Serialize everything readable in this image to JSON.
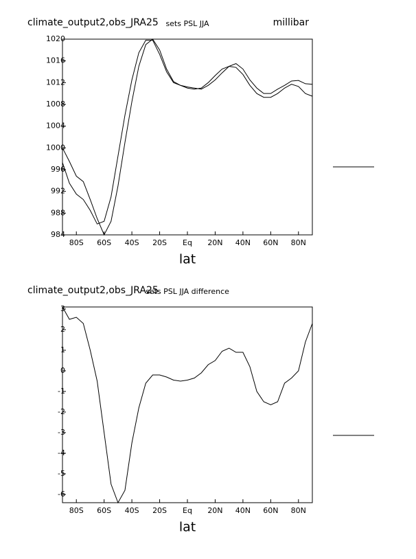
{
  "chart_data": [
    {
      "type": "line",
      "title": "climate_output2,obs_JRA25",
      "subtitle": "sets PSL JJA",
      "units": "millibar",
      "x_label": "lat",
      "x": [
        -90,
        -85,
        -80,
        -75,
        -70,
        -65,
        -60,
        -55,
        -50,
        -45,
        -40,
        -35,
        -30,
        -25,
        -20,
        -15,
        -10,
        -5,
        0,
        5,
        10,
        15,
        20,
        25,
        30,
        35,
        40,
        45,
        50,
        55,
        60,
        65,
        70,
        75,
        80,
        85,
        90
      ],
      "series": [
        {
          "color": "#000000",
          "values": [
            1000,
            997.5,
            994.8,
            993.8,
            990.5,
            987,
            984,
            986.5,
            993,
            1001,
            1008.5,
            1015,
            1019,
            1020,
            1018,
            1014.5,
            1012.2,
            1011.5,
            1011.2,
            1011,
            1010.8,
            1011.5,
            1012.5,
            1013.8,
            1015,
            1015.5,
            1014.5,
            1012.5,
            1011,
            1010,
            1010,
            1010.8,
            1011.5,
            1012.3,
            1012.4,
            1011.8,
            1011.7
          ]
        },
        {
          "color": "#000000",
          "values": [
            997.3,
            993.5,
            991.5,
            990.5,
            988.5,
            986,
            986.5,
            991,
            998.5,
            1006,
            1012.5,
            1017.5,
            1019.8,
            1019.8,
            1017.2,
            1014,
            1012,
            1011.5,
            1011,
            1010.8,
            1011,
            1012,
            1013.3,
            1014.5,
            1015,
            1014.8,
            1013.5,
            1011.5,
            1010,
            1009.3,
            1009.3,
            1010,
            1011,
            1011.7,
            1011.3,
            1010,
            1009.5
          ]
        }
      ],
      "xlim": [
        -90,
        90
      ],
      "ylim": [
        984,
        1020
      ],
      "xticks": [
        {
          "value": -80,
          "label": "80S"
        },
        {
          "value": -60,
          "label": "60S"
        },
        {
          "value": -40,
          "label": "40S"
        },
        {
          "value": -20,
          "label": "20S"
        },
        {
          "value": 0,
          "label": "Eq"
        },
        {
          "value": 20,
          "label": "20N"
        },
        {
          "value": 40,
          "label": "40N"
        },
        {
          "value": 60,
          "label": "60N"
        },
        {
          "value": 80,
          "label": "80N"
        }
      ],
      "yticks": [
        984,
        988,
        992,
        996,
        1000,
        1004,
        1008,
        1012,
        1016,
        1020
      ]
    },
    {
      "type": "line",
      "title": "climate_output2,obs_JRA25",
      "subtitle": "sets PSL JJA difference",
      "x_label": "lat",
      "x": [
        -90,
        -85,
        -80,
        -75,
        -70,
        -65,
        -60,
        -55,
        -50,
        -45,
        -40,
        -35,
        -30,
        -25,
        -20,
        -15,
        -10,
        -5,
        0,
        5,
        10,
        15,
        20,
        25,
        30,
        35,
        40,
        45,
        50,
        55,
        60,
        65,
        70,
        75,
        80,
        85,
        90
      ],
      "series": [
        {
          "color": "#000000",
          "values": [
            3.1,
            2.5,
            2.6,
            2.3,
            1.0,
            -0.5,
            -3.0,
            -5.5,
            -6.4,
            -5.8,
            -3.5,
            -1.8,
            -0.6,
            -0.2,
            -0.2,
            -0.3,
            -0.45,
            -0.5,
            -0.45,
            -0.35,
            -0.1,
            0.3,
            0.5,
            0.95,
            1.1,
            0.9,
            0.9,
            0.2,
            -1.0,
            -1.5,
            -1.65,
            -1.5,
            -0.6,
            -0.35,
            0.0,
            1.4,
            2.3
          ]
        }
      ],
      "xlim": [
        -90,
        90
      ],
      "ylim": [
        -6.4,
        3.1
      ],
      "xticks": [
        {
          "value": -80,
          "label": "80S"
        },
        {
          "value": -60,
          "label": "60S"
        },
        {
          "value": -40,
          "label": "40S"
        },
        {
          "value": -20,
          "label": "20S"
        },
        {
          "value": 0,
          "label": "Eq"
        },
        {
          "value": 20,
          "label": "20N"
        },
        {
          "value": 40,
          "label": "40N"
        },
        {
          "value": 60,
          "label": "60N"
        },
        {
          "value": 80,
          "label": "80N"
        }
      ],
      "yticks": [
        -6,
        -5,
        -4,
        -3,
        -2,
        -1,
        0,
        1,
        2,
        3
      ]
    }
  ]
}
